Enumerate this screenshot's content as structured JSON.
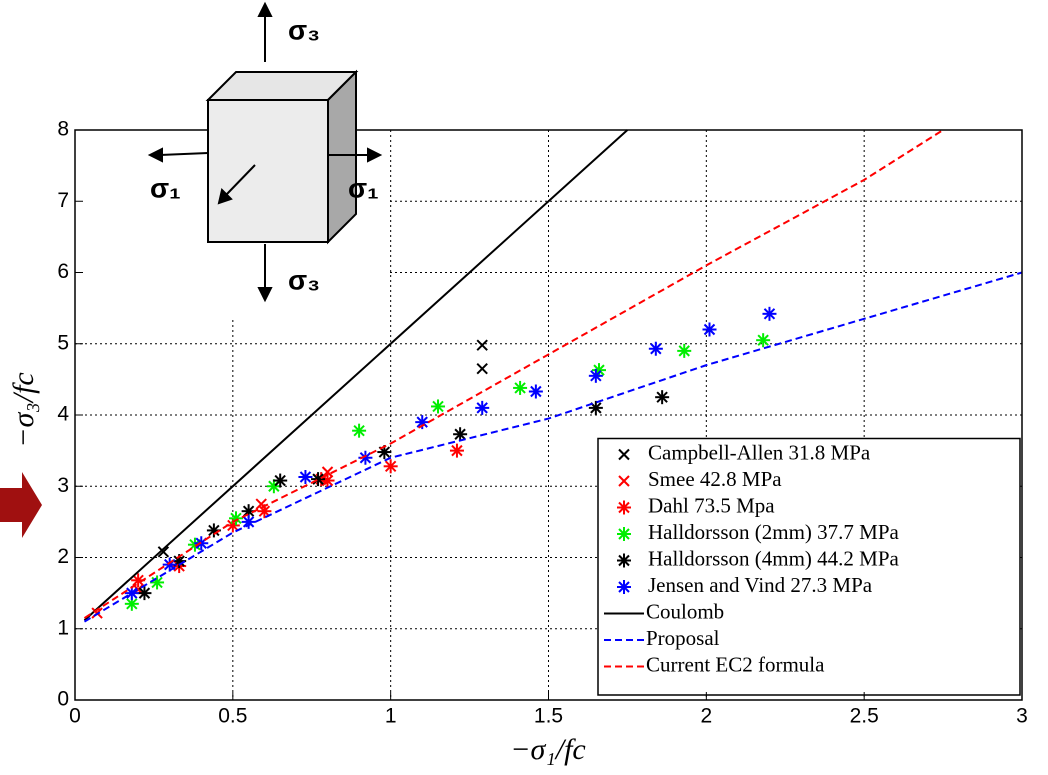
{
  "chart_data": {
    "type": "scatter",
    "xlabel": "−σ₁/fc",
    "ylabel": "−σ₃/fc",
    "annotations": [
      "σ₃",
      "σ₁",
      "σ₁",
      "σ₃"
    ],
    "xlim": [
      0,
      3
    ],
    "ylim": [
      0,
      8
    ],
    "xticks": [
      0,
      0.5,
      1,
      1.5,
      2,
      2.5,
      3
    ],
    "yticks": [
      0,
      1,
      2,
      3,
      4,
      5,
      6,
      7,
      8
    ],
    "grid": true,
    "legend": "lower right",
    "series": [
      {
        "name": "Campbell-Allen 31.8 MPa",
        "color": "#000000",
        "marker": "x",
        "x": [
          1.29,
          1.29,
          0.28
        ],
        "values": [
          4.98,
          4.65,
          2.08
        ]
      },
      {
        "name": "Smee 42.8 MPa",
        "color": "#ff0000",
        "marker": "x",
        "x": [
          0.07,
          0.2,
          0.59,
          0.8
        ],
        "values": [
          1.22,
          1.55,
          2.75,
          3.2
        ]
      },
      {
        "name": "Dahl 73.5 Mpa",
        "color": "#ff0000",
        "marker": "*",
        "x": [
          0.2,
          0.33,
          0.5,
          0.6,
          0.78,
          0.8,
          1.0,
          1.21
        ],
        "values": [
          1.68,
          1.88,
          2.45,
          2.65,
          3.1,
          3.08,
          3.28,
          3.5
        ]
      },
      {
        "name": "Halldorsson (2mm) 37.7 MPa",
        "color": "#00ee00",
        "marker": "*",
        "x": [
          0.18,
          0.26,
          0.38,
          0.51,
          0.63,
          0.9,
          1.15,
          1.41,
          1.66,
          1.93,
          2.18
        ],
        "values": [
          1.35,
          1.65,
          2.18,
          2.55,
          3.0,
          3.78,
          4.12,
          4.38,
          4.63,
          4.9,
          5.05
        ]
      },
      {
        "name": "Halldorsson (4mm) 44.2 MPa",
        "color": "#000000",
        "marker": "*",
        "x": [
          0.22,
          0.33,
          0.44,
          0.55,
          0.65,
          0.77,
          0.98,
          1.22,
          1.65,
          1.86
        ],
        "values": [
          1.5,
          1.95,
          2.38,
          2.65,
          3.08,
          3.1,
          3.48,
          3.73,
          4.1,
          4.25
        ]
      },
      {
        "name": "Jensen and Vind 27.3 MPa",
        "color": "#0000ff",
        "marker": "*",
        "x": [
          0.18,
          0.3,
          0.4,
          0.55,
          0.73,
          0.92,
          1.1,
          1.29,
          1.46,
          1.65,
          1.84,
          2.01,
          2.2
        ],
        "values": [
          1.5,
          1.9,
          2.2,
          2.5,
          3.13,
          3.4,
          3.9,
          4.1,
          4.33,
          4.55,
          4.93,
          5.2,
          5.42
        ]
      },
      {
        "name": "Coulomb",
        "color": "#000000",
        "marker": "line",
        "dash": false,
        "x": [
          0.03,
          1.75
        ],
        "values": [
          1.12,
          8
        ]
      },
      {
        "name": "Proposal",
        "color": "#0000ff",
        "marker": "line",
        "dash": true,
        "x": [
          0.03,
          0.5,
          1,
          1.5,
          2,
          2.5,
          3
        ],
        "values": [
          1.1,
          2.35,
          3.4,
          3.95,
          4.7,
          5.35,
          6
        ]
      },
      {
        "name": "Current EC2 formula",
        "color": "#ff0000",
        "marker": "line",
        "dash": true,
        "x": [
          0.03,
          0.5,
          1,
          1.5,
          2,
          2.5,
          2.75
        ],
        "values": [
          1.15,
          2.5,
          3.6,
          4.85,
          6.1,
          7.3,
          8
        ]
      }
    ]
  }
}
